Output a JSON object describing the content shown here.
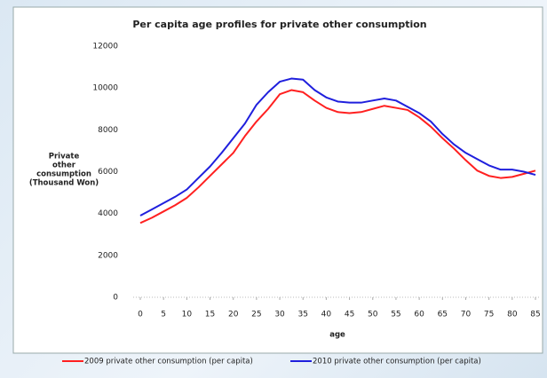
{
  "chart_data": {
    "type": "line",
    "title": "Per capita age profiles for private other consumption",
    "xlabel": "age",
    "ylabel": [
      "Private",
      "other",
      "consumption",
      "(Thousand Won)"
    ],
    "x": [
      0,
      2.5,
      5,
      7.5,
      10,
      12.5,
      15,
      17.5,
      20,
      22.5,
      25,
      27.5,
      30,
      32.5,
      35,
      37.5,
      40,
      42.5,
      45,
      47.5,
      50,
      52.5,
      55,
      57.5,
      60,
      62.5,
      65,
      67.5,
      70,
      72.5,
      75,
      77.5,
      80,
      82.5,
      85
    ],
    "series": [
      {
        "name": "2009 private other consumption (per capita)",
        "color": "#ff2020",
        "values": [
          3550,
          3800,
          4100,
          4400,
          4750,
          5250,
          5800,
          6350,
          6900,
          7700,
          8400,
          9000,
          9700,
          9900,
          9800,
          9400,
          9050,
          8850,
          8800,
          8850,
          9000,
          9150,
          9050,
          8950,
          8600,
          8150,
          7600,
          7100,
          6550,
          6050,
          5800,
          5700,
          5750,
          5900,
          6050
        ]
      },
      {
        "name": "2010 private other consumption (per capita)",
        "color": "#1f1fdd",
        "values": [
          3900,
          4200,
          4500,
          4800,
          5150,
          5700,
          6250,
          6900,
          7600,
          8300,
          9200,
          9800,
          10300,
          10450,
          10400,
          9900,
          9550,
          9350,
          9300,
          9300,
          9400,
          9500,
          9400,
          9100,
          8800,
          8400,
          7800,
          7300,
          6900,
          6600,
          6300,
          6100,
          6100,
          6000,
          5850
        ]
      }
    ],
    "xlim": [
      0,
      85
    ],
    "xticks": [
      0,
      5,
      10,
      15,
      20,
      25,
      30,
      35,
      40,
      45,
      50,
      55,
      60,
      65,
      70,
      75,
      80,
      85
    ],
    "ylim": [
      0,
      12000
    ],
    "yticks": [
      0,
      2000,
      4000,
      6000,
      8000,
      10000,
      12000
    ],
    "grid": false,
    "legend": "bottom"
  }
}
